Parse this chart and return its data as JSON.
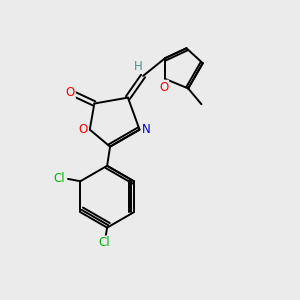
{
  "background_color": "#ebebeb",
  "bond_color": "#000000",
  "atom_colors": {
    "O": "#ff0000",
    "N": "#0000cd",
    "Cl": "#00bb00",
    "H": "#4a9090",
    "C": "#000000"
  },
  "figsize": [
    3.0,
    3.0
  ],
  "dpi": 100,
  "lw": 1.4,
  "fs": 8.5
}
